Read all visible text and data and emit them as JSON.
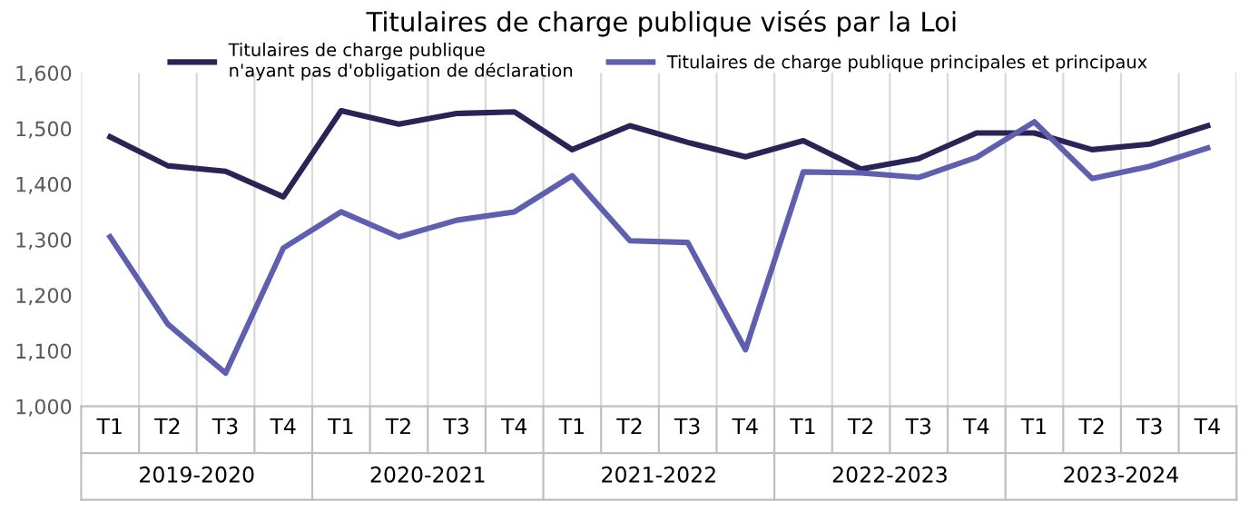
{
  "chart_data": {
    "type": "line",
    "title": "Titulaires de charge publique visés par la Loi",
    "categories": [
      "T1",
      "T2",
      "T3",
      "T4",
      "T1",
      "T2",
      "T3",
      "T4",
      "T1",
      "T2",
      "T3",
      "T4",
      "T1",
      "T2",
      "T3",
      "T4",
      "T1",
      "T2",
      "T3",
      "T4"
    ],
    "annotations": [
      "2019-2020",
      "2020-2021",
      "2021-2022",
      "2022-2023",
      "2023-2024"
    ],
    "series": [
      {
        "name": "Titulaires de charge publique\nn'ayant pas d'obligation de déclaration",
        "color": "#2a2456",
        "values": [
          1485,
          1433,
          1423,
          1377,
          1532,
          1508,
          1527,
          1530,
          1462,
          1505,
          1475,
          1449,
          1478,
          1427,
          1446,
          1492,
          1492,
          1462,
          1472,
          1505
        ]
      },
      {
        "name": "Titulaires de charge publique principales et principaux",
        "color": "#5f5fb0",
        "values": [
          1305,
          1148,
          1060,
          1285,
          1350,
          1305,
          1335,
          1350,
          1415,
          1298,
          1295,
          1102,
          1422,
          1420,
          1412,
          1448,
          1512,
          1410,
          1432,
          1465
        ]
      }
    ],
    "ylim": [
      1000,
      1600
    ],
    "yticks": [
      {
        "value": 1000,
        "label": "1,000"
      },
      {
        "value": 1100,
        "label": "1,100"
      },
      {
        "value": 1200,
        "label": "1,200"
      },
      {
        "value": 1300,
        "label": "1,300"
      },
      {
        "value": 1400,
        "label": "1,400"
      },
      {
        "value": 1500,
        "label": "1,500"
      },
      {
        "value": 1600,
        "label": "1,600"
      }
    ],
    "grid": "x",
    "legend": "top",
    "marker": "none",
    "line_style": "solid"
  }
}
